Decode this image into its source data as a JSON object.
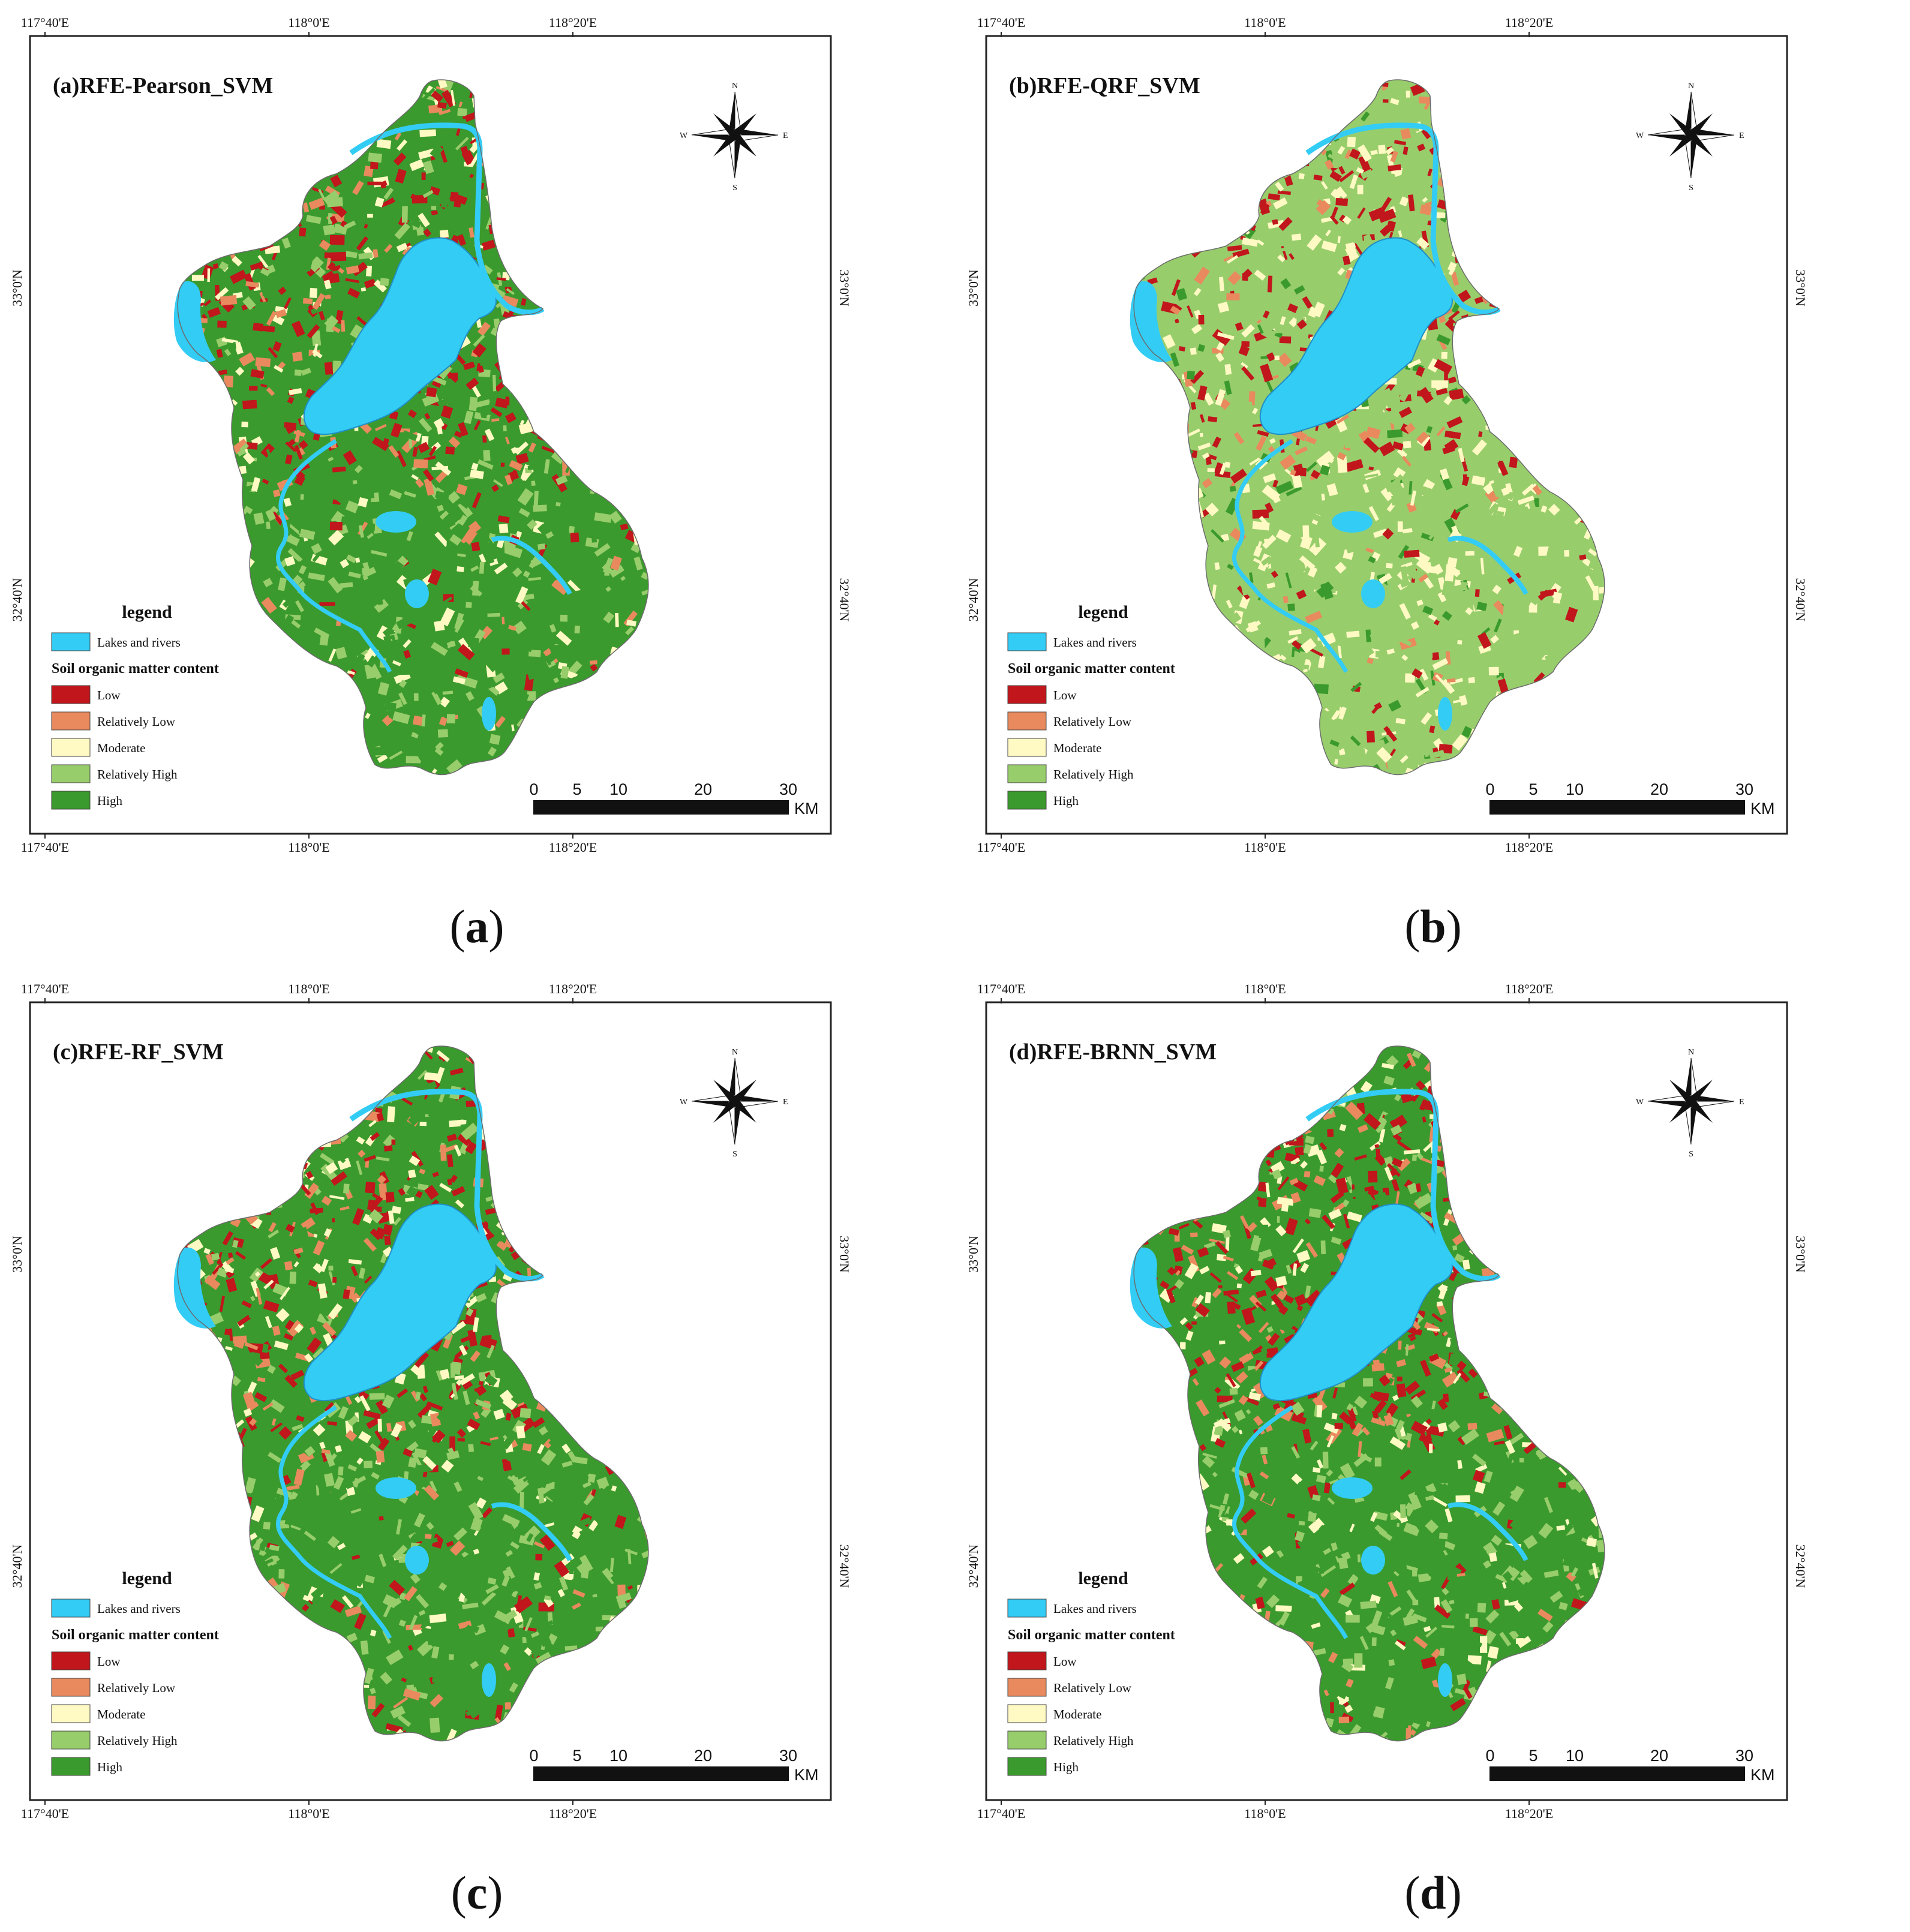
{
  "colors": {
    "water": "#33ccf5",
    "low": "#c0161c",
    "relatively_low": "#e88a5e",
    "moderate": "#fffac3",
    "relatively_high": "#98cd6c",
    "high": "#3b9a2d"
  },
  "coords": {
    "top_lon": [
      "117°40'E",
      "118°0'E",
      "118°20'E"
    ],
    "bottom_lon": [
      "117°40'E",
      "118°0'E",
      "118°20'E"
    ],
    "left_lat": [
      "33°0'N",
      "32°40'N"
    ],
    "right_lat": [
      "33°0'N",
      "32°40'N"
    ]
  },
  "legend": {
    "title": "legend",
    "water_label": "Lakes and rivers",
    "subtitle": "Soil organic matter content",
    "classes": [
      "Low",
      "Relatively Low",
      "Moderate",
      "Relatively High",
      "High"
    ]
  },
  "compass": {
    "n": "N",
    "s": "S",
    "e": "E",
    "w": "W"
  },
  "scale": {
    "ticks": [
      "0",
      "5",
      "10",
      "20",
      "30"
    ],
    "unit": "KM"
  },
  "panels": [
    {
      "title": "(a)RFE-Pearson_SVM",
      "caption_letter": "a",
      "tone": "high"
    },
    {
      "title": "(b)RFE-QRF_SVM",
      "caption_letter": "b",
      "tone": "relatively_high"
    },
    {
      "title": "(c)RFE-RF_SVM",
      "caption_letter": "c",
      "tone": "high"
    },
    {
      "title": "(d)RFE-BRNN_SVM",
      "caption_letter": "d",
      "tone": "high"
    }
  ]
}
